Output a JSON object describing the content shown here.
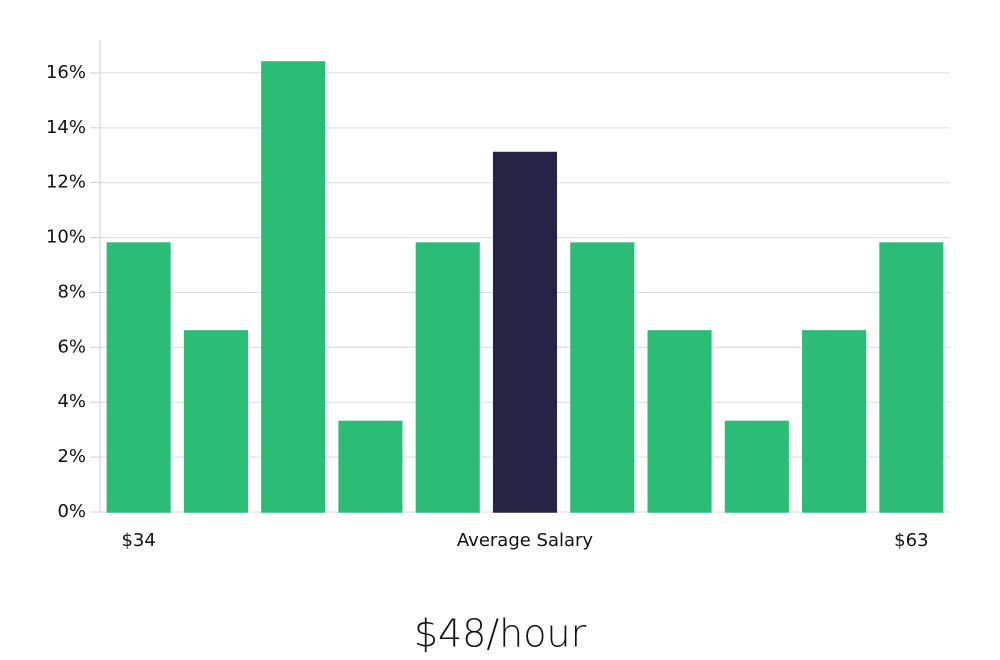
{
  "chart_data": {
    "type": "bar",
    "categories": [
      "$34",
      null,
      null,
      null,
      null,
      "Average Salary",
      null,
      null,
      null,
      null,
      "$63"
    ],
    "values": [
      9.8,
      6.6,
      16.4,
      3.3,
      9.8,
      13.1,
      9.8,
      6.6,
      3.3,
      6.6,
      9.8
    ],
    "colors": [
      "#2bbd76",
      "#2bbd76",
      "#2bbd76",
      "#2bbd76",
      "#2bbd76",
      "#262445",
      "#2bbd76",
      "#2bbd76",
      "#2bbd76",
      "#2bbd76",
      "#2bbd76"
    ],
    "ylim": [
      0,
      17.2
    ],
    "yticks": [
      {
        "value": 0,
        "label": "0%"
      },
      {
        "value": 2,
        "label": "2%"
      },
      {
        "value": 4,
        "label": "4%"
      },
      {
        "value": 6,
        "label": "6%"
      },
      {
        "value": 8,
        "label": "8%"
      },
      {
        "value": 10,
        "label": "10%"
      },
      {
        "value": 12,
        "label": "12%"
      },
      {
        "value": 14,
        "label": "14%"
      },
      {
        "value": 16,
        "label": "16%"
      }
    ],
    "grid": true,
    "annotation": "$48/hour"
  }
}
